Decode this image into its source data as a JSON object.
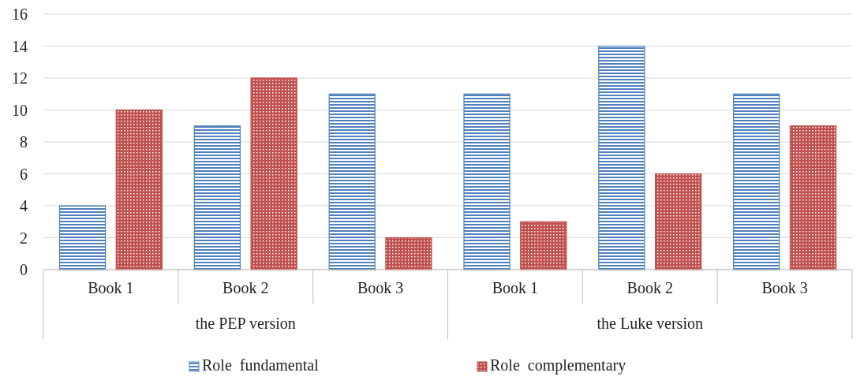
{
  "chart_data": {
    "type": "bar",
    "categories": [
      "Book 1",
      "Book 2",
      "Book 3",
      "Book 1",
      "Book 2",
      "Book 3"
    ],
    "series": [
      {
        "name": "Role  fundamental",
        "color": "#4f81bd",
        "values": [
          4,
          9,
          11,
          11,
          14,
          11
        ]
      },
      {
        "name": "Role  complementary",
        "color": "#c0504d",
        "values": [
          10,
          12,
          2,
          3,
          6,
          9
        ]
      }
    ],
    "ylim": [
      0,
      16
    ],
    "yticks": [
      0,
      2,
      4,
      6,
      8,
      10,
      12,
      14,
      16
    ],
    "grid": "y",
    "legend": "bottom",
    "annotations": [
      "the PEP version",
      "the Luke version"
    ]
  }
}
